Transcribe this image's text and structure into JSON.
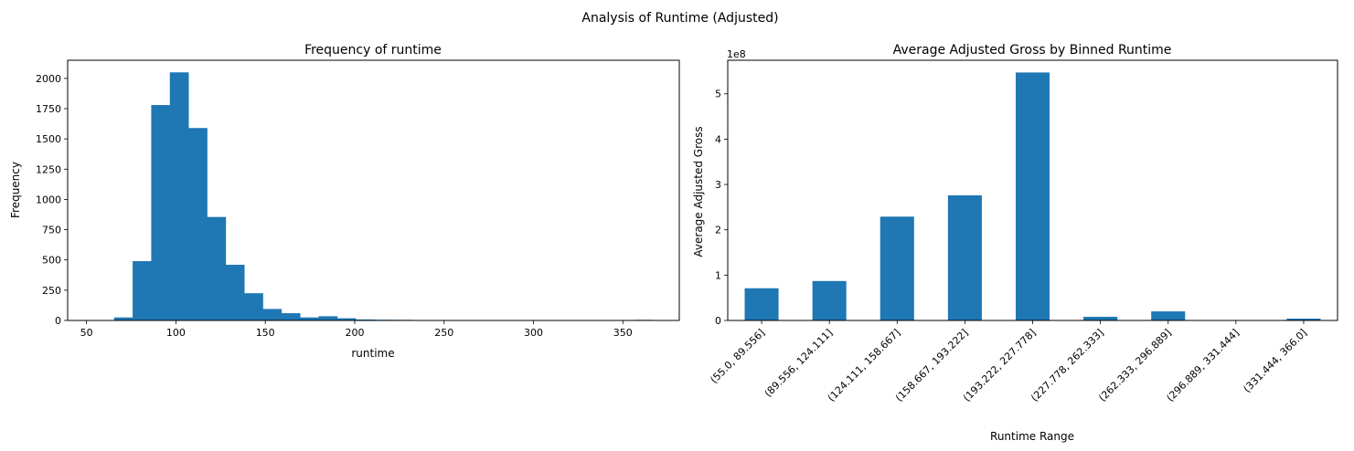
{
  "figure": {
    "suptitle": "Analysis of Runtime (Adjusted)"
  },
  "chart_data": [
    {
      "type": "bar",
      "title": "Frequency of runtime",
      "xlabel": "runtime",
      "ylabel": "Frequency",
      "bar_color": "#1f77b4",
      "xlim": [
        39.45,
        381.55
      ],
      "ylim": [
        0,
        2150
      ],
      "xticks": [
        50,
        100,
        150,
        200,
        250,
        300,
        350
      ],
      "yticks": [
        0,
        250,
        500,
        750,
        1000,
        1250,
        1500,
        1750,
        2000
      ],
      "bin_edges": [
        55.0,
        65.4,
        75.8,
        86.2,
        96.6,
        107.0,
        117.4,
        127.8,
        138.2,
        148.6,
        159.0,
        169.4,
        179.8,
        190.2,
        200.6,
        211.0,
        221.4,
        231.8,
        242.2,
        252.6,
        263.0,
        273.4,
        283.8,
        294.2,
        304.6,
        315.0,
        325.4,
        335.8,
        346.2,
        356.6,
        366.0
      ],
      "values": [
        3,
        25,
        490,
        1780,
        2050,
        1590,
        855,
        460,
        225,
        95,
        60,
        25,
        35,
        18,
        8,
        6,
        5,
        2,
        1,
        1,
        0,
        0,
        0,
        0,
        0,
        0,
        0,
        0,
        0,
        5
      ],
      "grid": false
    },
    {
      "type": "bar",
      "title": "Average Adjusted Gross by Binned Runtime",
      "xlabel": "Runtime Range",
      "ylabel": "Average Adjusted Gross",
      "offset_label": "1e8",
      "bar_color": "#1f77b4",
      "categories": [
        "(55.0, 89.556]",
        "(89.556, 124.111]",
        "(124.111, 158.667]",
        "(158.667, 193.222]",
        "(193.222, 227.778]",
        "(227.778, 262.333]",
        "(262.333, 296.889]",
        "(296.889, 331.444]",
        "(331.444, 366.0]"
      ],
      "values": [
        0.71,
        0.87,
        2.29,
        2.76,
        5.47,
        0.08,
        0.2,
        0,
        0.04
      ],
      "ylim": [
        0,
        5.74
      ],
      "yticks": [
        0,
        1,
        2,
        3,
        4,
        5
      ],
      "grid": false
    }
  ]
}
